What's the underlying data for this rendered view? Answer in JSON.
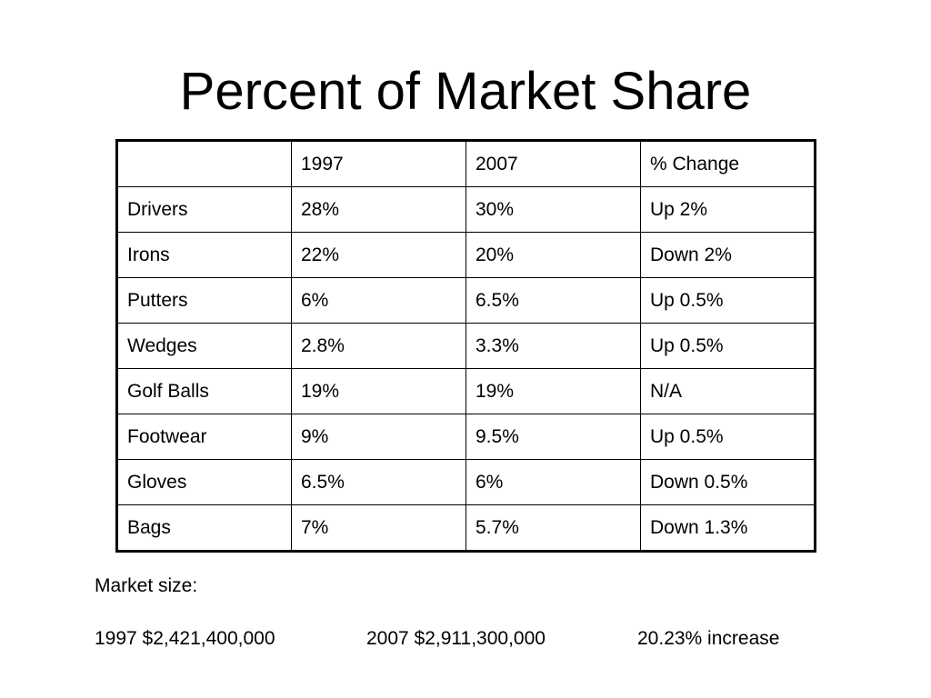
{
  "slide": {
    "title": "Percent of Market Share"
  },
  "table": {
    "headers": [
      "",
      "1997",
      "2007",
      "% Change"
    ],
    "rows": [
      [
        "Drivers",
        "28%",
        "30%",
        "Up 2%"
      ],
      [
        "Irons",
        "22%",
        "20%",
        "Down 2%"
      ],
      [
        "Putters",
        "6%",
        "6.5%",
        "Up 0.5%"
      ],
      [
        "Wedges",
        "2.8%",
        "3.3%",
        "Up 0.5%"
      ],
      [
        "Golf Balls",
        "19%",
        "19%",
        "N/A"
      ],
      [
        "Footwear",
        "9%",
        "9.5%",
        "Up 0.5%"
      ],
      [
        "Gloves",
        "6.5%",
        "6%",
        "Down 0.5%"
      ],
      [
        "Bags",
        "7%",
        "5.7%",
        "Down 1.3%"
      ]
    ]
  },
  "market": {
    "label": "Market size:",
    "value_1997": "1997 $2,421,400,000",
    "value_2007": "2007 $2,911,300,000",
    "increase": "20.23% increase"
  }
}
